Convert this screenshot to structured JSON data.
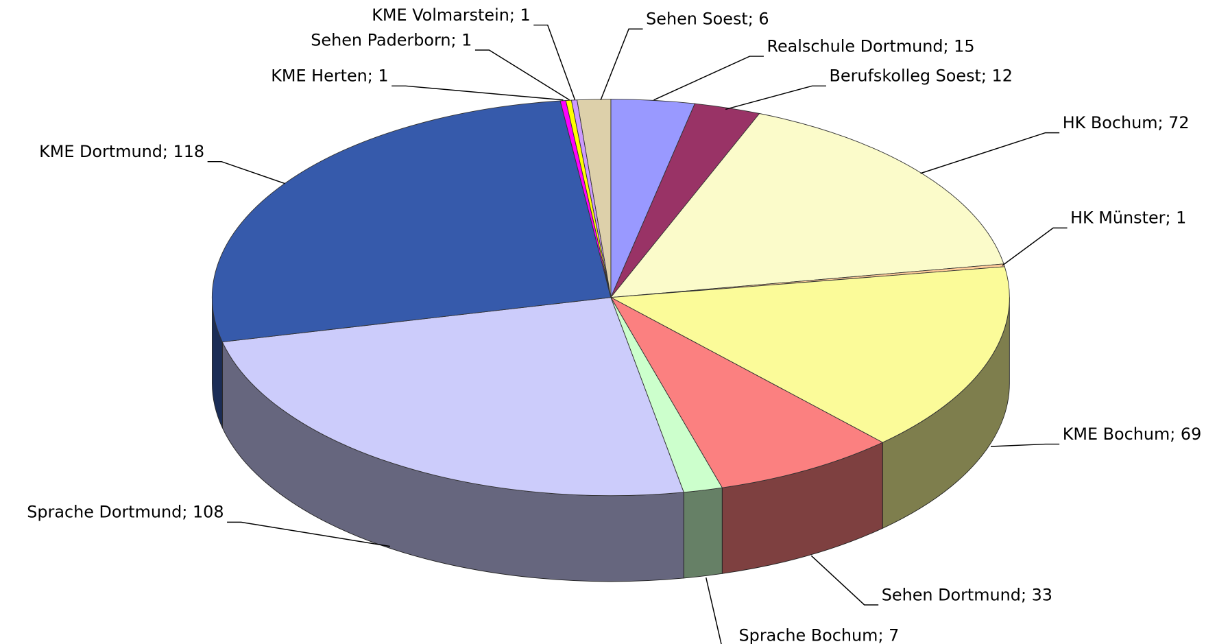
{
  "chart_data": {
    "type": "pie3d",
    "categories": [
      "Realschule Dortmund",
      "Berufskolleg Soest",
      "HK Bochum",
      "HK Münster",
      "KME Bochum",
      "Sehen Dortmund",
      "Sprache Bochum",
      "Sprache Dortmund",
      "KME Dortmund",
      "KME Herten",
      "Sehen Paderborn",
      "KME Volmarstein",
      "Sehen Soest"
    ],
    "values": [
      15,
      12,
      72,
      1,
      69,
      33,
      7,
      108,
      118,
      1,
      1,
      1,
      6
    ],
    "value_labels": [
      "; 15",
      "; 12",
      "; 72",
      "; 1",
      "; 69",
      "; 33",
      "; 7",
      "; 108",
      "; 118",
      "; 1",
      "; 1",
      "; 1",
      "; 6"
    ],
    "colors": [
      "#9999ff",
      "#993366",
      "#fbfbca",
      "#ffcc99",
      "#fbfb99",
      "#fb8080",
      "#ccffcc",
      "#ccccfb",
      "#365aab",
      "#ff00ff",
      "#ffff00",
      "#cc99ff",
      "#ddd0aa"
    ]
  }
}
